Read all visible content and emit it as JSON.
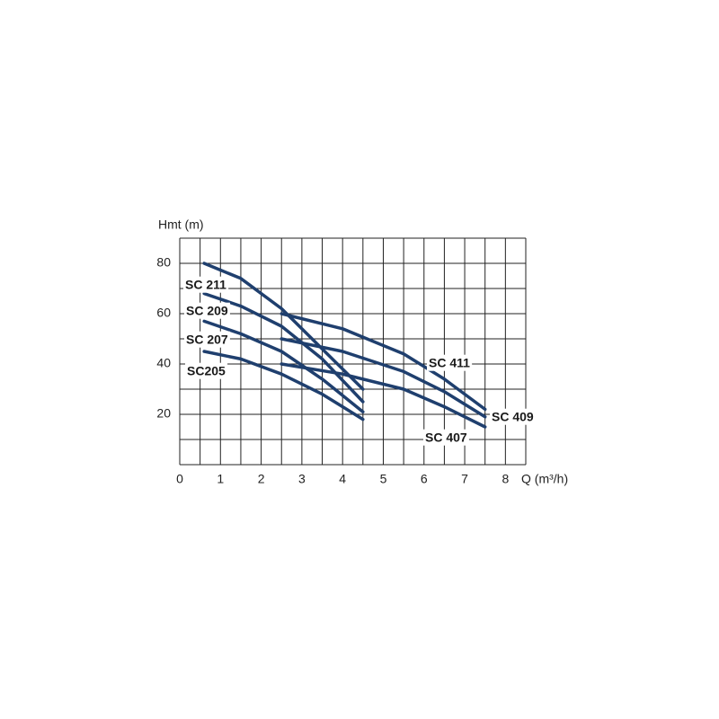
{
  "chart_data": {
    "type": "line",
    "ylabel": "Hmt (m)",
    "xlabel": "Q (m³/h)",
    "xlim": [
      0,
      8.5
    ],
    "ylim": [
      0,
      90
    ],
    "xticks": [
      0,
      1,
      2,
      3,
      4,
      5,
      6,
      7,
      8
    ],
    "yticks": [
      20,
      40,
      60,
      80
    ],
    "xgrid": [
      0,
      0.5,
      1,
      1.5,
      2,
      2.5,
      3,
      3.5,
      4,
      4.5,
      5,
      5.5,
      6,
      6.5,
      7,
      7.5,
      8,
      8.5
    ],
    "ygrid": [
      0,
      10,
      20,
      30,
      40,
      50,
      60,
      70,
      80,
      90
    ],
    "grid": true,
    "series": [
      {
        "name": "SC 211",
        "color": "#1f3f6e",
        "x": [
          0.6,
          1.5,
          2.5,
          3.5,
          4.5
        ],
        "values": [
          80,
          74,
          62,
          46,
          30
        ]
      },
      {
        "name": "SC 209",
        "color": "#1f3f6e",
        "x": [
          0.6,
          1.5,
          2.5,
          3.5,
          4.5
        ],
        "values": [
          68,
          63,
          55,
          42,
          25
        ]
      },
      {
        "name": "SC 207",
        "color": "#1f3f6e",
        "x": [
          0.6,
          1.5,
          2.5,
          3.5,
          4.5
        ],
        "values": [
          57,
          52,
          45,
          34,
          21
        ]
      },
      {
        "name": "SC205",
        "color": "#1f3f6e",
        "x": [
          0.6,
          1.5,
          2.5,
          3.5,
          4.5
        ],
        "values": [
          45,
          42,
          36,
          28,
          18
        ]
      },
      {
        "name": "SC 411",
        "color": "#1f3f6e",
        "x": [
          2.5,
          4,
          5.5,
          6.5,
          7.5
        ],
        "values": [
          60,
          54,
          44,
          34,
          22
        ]
      },
      {
        "name": "SC 409",
        "color": "#1f3f6e",
        "x": [
          2.5,
          4,
          5.5,
          6.5,
          7.5
        ],
        "values": [
          50,
          45,
          37,
          29,
          19
        ]
      },
      {
        "name": "SC 407",
        "color": "#1f3f6e",
        "x": [
          2.5,
          4,
          5.5,
          6.5,
          7.5
        ],
        "values": [
          40,
          36,
          30,
          23,
          15
        ]
      }
    ]
  }
}
